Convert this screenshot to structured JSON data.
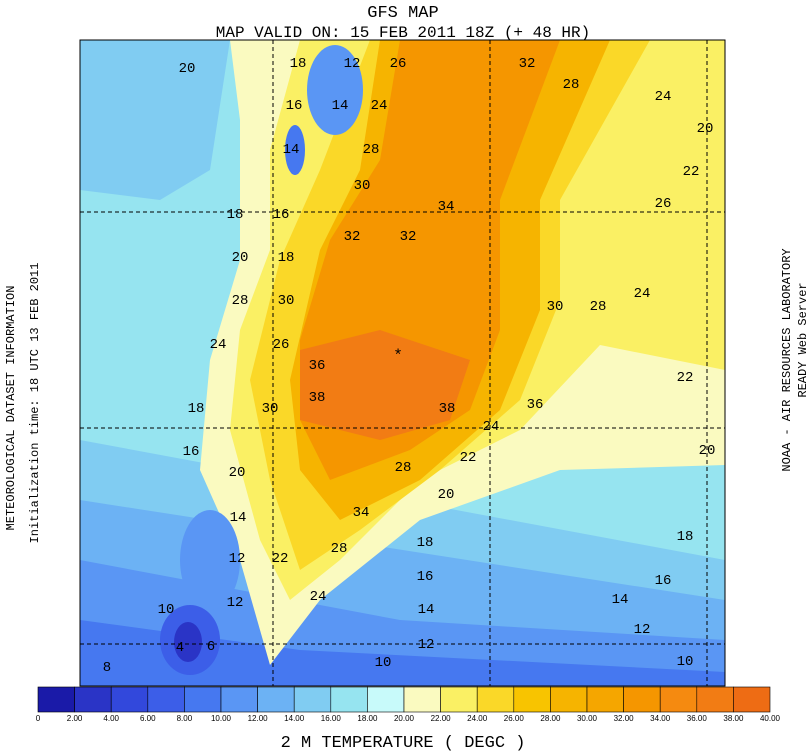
{
  "header": {
    "title": "GFS MAP",
    "subtitle": "MAP VALID ON: 15 FEB 2011 18Z (+ 48 HR)"
  },
  "left_info": {
    "line1": "METEOROLOGICAL DATASET INFORMATION",
    "line2": "Initialization time: 18 UTC 13 FEB 2011"
  },
  "right_info": {
    "line1": "NOAA - AIR RESOURCES LABORATORY",
    "line2": "READY Web Server"
  },
  "map": {
    "contour_labels": [
      "20",
      "18",
      "12",
      "26",
      "32",
      "28",
      "24",
      "20",
      "16",
      "14",
      "24",
      "14",
      "28",
      "22",
      "30",
      "34",
      "26",
      "18",
      "16",
      "32",
      "32",
      "20",
      "18",
      "28",
      "30",
      "30",
      "28",
      "24",
      "24",
      "26",
      "36",
      "22",
      "18",
      "30",
      "38",
      "38",
      "36",
      "24",
      "16",
      "20",
      "28",
      "22",
      "20",
      "20",
      "14",
      "34",
      "18",
      "18",
      "12",
      "22",
      "28",
      "16",
      "16",
      "12",
      "24",
      "14",
      "10",
      "14",
      "12",
      "4",
      "6",
      "12",
      "10",
      "10",
      "8"
    ]
  },
  "legend": {
    "colors": [
      "#1a1aa8",
      "#2a34c6",
      "#3248dc",
      "#3c5ee8",
      "#4678f0",
      "#5a96f4",
      "#6cb2f4",
      "#80ccf2",
      "#96e4f0",
      "#c8fafa",
      "#fafac0",
      "#faf064",
      "#fad828",
      "#f8c400",
      "#f6b400",
      "#f5a600",
      "#f59600",
      "#f58a10",
      "#f27c14",
      "#ee6c14"
    ],
    "labels": [
      "0",
      "2.00",
      "4.00",
      "6.00",
      "8.00",
      "10.00",
      "12.00",
      "14.00",
      "16.00",
      "18.00",
      "20.00",
      "22.00",
      "24.00",
      "26.00",
      "28.00",
      "30.00",
      "32.00",
      "34.00",
      "36.00",
      "38.00",
      "40.00"
    ],
    "caption": "2 M TEMPERATURE ( DEGC )"
  }
}
